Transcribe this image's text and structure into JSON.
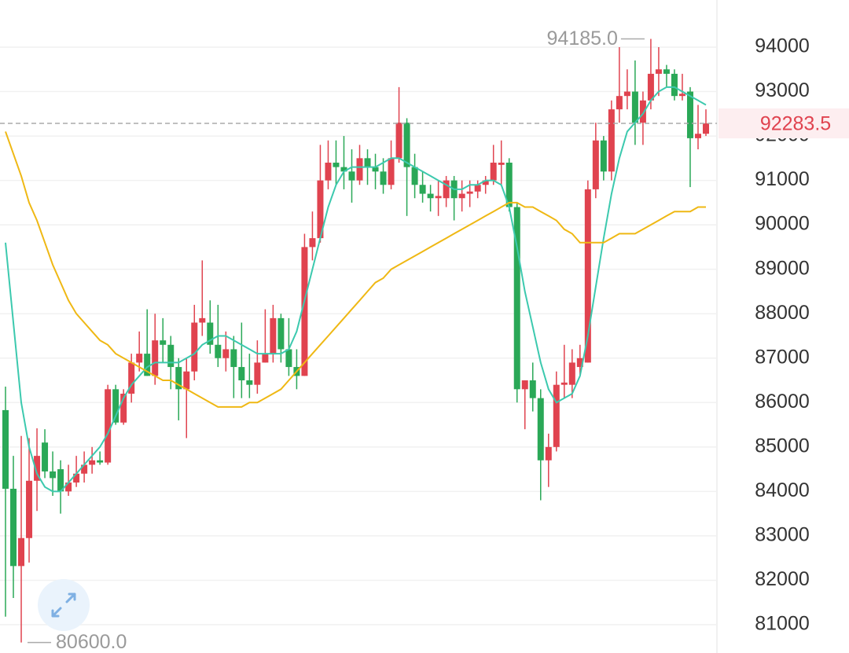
{
  "chart_data": {
    "type": "candlestick",
    "up_color": "#e0434f",
    "down_color": "#2aa857",
    "ylim": [
      80363,
      95061
    ],
    "yticks": [
      81000,
      82000,
      83000,
      84000,
      85000,
      86000,
      87000,
      88000,
      89000,
      90000,
      91000,
      92000,
      93000,
      94000
    ],
    "grid": true,
    "ohlc": [
      [
        85830,
        86360,
        81180,
        84060
      ],
      [
        84060,
        84800,
        81600,
        82320
      ],
      [
        82320,
        85250,
        80600,
        82950
      ],
      [
        82950,
        85200,
        82400,
        84240
      ],
      [
        84240,
        85420,
        83560,
        84800
      ],
      [
        85100,
        85400,
        84300,
        84450
      ],
      [
        84450,
        84900,
        83900,
        84300
      ],
      [
        84500,
        84700,
        83500,
        84000
      ],
      [
        84000,
        84600,
        83900,
        84200
      ],
      [
        84200,
        84800,
        84100,
        84400
      ],
      [
        84400,
        84900,
        84200,
        84600
      ],
      [
        84600,
        85000,
        84400,
        84700
      ],
      [
        84700,
        84900,
        84600,
        84650
      ],
      [
        84650,
        86400,
        84600,
        86300
      ],
      [
        86300,
        86400,
        85500,
        85550
      ],
      [
        85550,
        86300,
        85500,
        86200
      ],
      [
        86200,
        87100,
        86000,
        86900
      ],
      [
        86900,
        87600,
        86700,
        87100
      ],
      [
        87100,
        88100,
        86600,
        86600
      ],
      [
        86600,
        88000,
        86400,
        87400
      ],
      [
        87400,
        87900,
        86900,
        87300
      ],
      [
        87300,
        87500,
        86300,
        86800
      ],
      [
        86800,
        87000,
        85600,
        86300
      ],
      [
        86300,
        87000,
        85200,
        86700
      ],
      [
        86700,
        88200,
        86500,
        87800
      ],
      [
        87800,
        89200,
        87500,
        87900
      ],
      [
        87800,
        88300,
        87100,
        87300
      ],
      [
        87300,
        88200,
        86800,
        87000
      ],
      [
        87000,
        87600,
        86700,
        87200
      ],
      [
        87200,
        87500,
        86100,
        86800
      ],
      [
        86800,
        87800,
        86100,
        86500
      ],
      [
        86500,
        87100,
        86100,
        86400
      ],
      [
        86400,
        87400,
        86200,
        86900
      ],
      [
        86900,
        88100,
        86900,
        87100
      ],
      [
        87100,
        88200,
        86900,
        87900
      ],
      [
        87900,
        88000,
        86900,
        87200
      ],
      [
        87200,
        87900,
        86600,
        86800
      ],
      [
        86800,
        87200,
        86300,
        86600
      ],
      [
        86600,
        89800,
        86600,
        89500
      ],
      [
        89500,
        90300,
        89200,
        89700
      ],
      [
        89700,
        91800,
        89600,
        91000
      ],
      [
        91000,
        91900,
        90800,
        91400
      ],
      [
        91400,
        91900,
        90900,
        91300
      ],
      [
        91300,
        92000,
        90800,
        91200
      ],
      [
        91200,
        91700,
        90500,
        91000
      ],
      [
        91000,
        91800,
        90900,
        91500
      ],
      [
        91500,
        91700,
        90900,
        91300
      ],
      [
        91300,
        91600,
        90800,
        91200
      ],
      [
        91200,
        91500,
        90700,
        90900
      ],
      [
        90900,
        91900,
        90800,
        91500
      ],
      [
        91500,
        93100,
        91400,
        92300
      ],
      [
        92300,
        92400,
        90200,
        91300
      ],
      [
        91300,
        91600,
        90600,
        90900
      ],
      [
        90900,
        91200,
        90500,
        90700
      ],
      [
        90700,
        90900,
        90300,
        90600
      ],
      [
        90600,
        91000,
        90200,
        90650
      ],
      [
        90600,
        91100,
        90400,
        91000
      ],
      [
        91000,
        91100,
        90100,
        90600
      ],
      [
        90600,
        91000,
        90300,
        90700
      ],
      [
        90700,
        91000,
        90400,
        90750
      ],
      [
        90750,
        91000,
        90600,
        90900
      ],
      [
        90900,
        91100,
        90700,
        91000
      ],
      [
        91000,
        91800,
        90900,
        91400
      ],
      [
        91350,
        91900,
        90900,
        91400
      ],
      [
        91400,
        91500,
        90300,
        90400
      ],
      [
        90400,
        90500,
        86000,
        86300
      ],
      [
        86300,
        86500,
        85400,
        86500
      ],
      [
        86500,
        86900,
        85800,
        86100
      ],
      [
        86100,
        86300,
        83800,
        84700
      ],
      [
        84700,
        85300,
        84100,
        85000
      ],
      [
        85000,
        86700,
        84900,
        86400
      ],
      [
        86400,
        87300,
        86100,
        86450
      ],
      [
        86400,
        87200,
        86100,
        86900
      ],
      [
        86800,
        87300,
        86600,
        87000
      ],
      [
        86900,
        91000,
        86900,
        90800
      ],
      [
        90800,
        92300,
        90600,
        91900
      ],
      [
        91900,
        92000,
        91000,
        91200
      ],
      [
        91200,
        92800,
        91000,
        92600
      ],
      [
        92600,
        94000,
        92300,
        92900
      ],
      [
        92900,
        93500,
        92600,
        93000
      ],
      [
        93000,
        93700,
        91800,
        92300
      ],
      [
        92300,
        93000,
        91800,
        92800
      ],
      [
        92800,
        94185,
        92600,
        93400
      ],
      [
        93400,
        94000,
        92900,
        93500
      ],
      [
        93500,
        93600,
        93100,
        93400
      ],
      [
        93400,
        93500,
        92800,
        92900
      ],
      [
        92900,
        93400,
        92800,
        92950
      ],
      [
        93000,
        93100,
        90850,
        91950
      ],
      [
        91950,
        92700,
        91700,
        92050
      ],
      [
        92050,
        92600,
        92000,
        92283.5
      ]
    ],
    "series": [
      {
        "color": "#3cc9ae",
        "values": [
          89600,
          87800,
          86000,
          85000,
          84400,
          84100,
          84000,
          84000,
          84200,
          84400,
          84600,
          84800,
          85000,
          85300,
          85700,
          86100,
          86400,
          86600,
          86800,
          86900,
          86900,
          86900,
          86900,
          87000,
          87100,
          87300,
          87400,
          87500,
          87500,
          87400,
          87300,
          87200,
          87100,
          87100,
          87100,
          87100,
          87200,
          87600,
          88300,
          89000,
          89700,
          90400,
          90900,
          91200,
          91300,
          91300,
          91300,
          91300,
          91400,
          91500,
          91500,
          91400,
          91300,
          91200,
          91100,
          91000,
          90900,
          90800,
          90800,
          90900,
          90900,
          91000,
          91000,
          90900,
          90400,
          89500,
          88500,
          87700,
          86900,
          86300,
          86000,
          86100,
          86200,
          86600,
          87500,
          88600,
          89700,
          90700,
          91500,
          92100,
          92300,
          92500,
          92800,
          93000,
          93100,
          93100,
          93000,
          92900,
          92800,
          92700
        ]
      },
      {
        "color": "#efb814",
        "values": [
          92100,
          91600,
          91100,
          90500,
          90100,
          89600,
          89100,
          88700,
          88300,
          88000,
          87800,
          87600,
          87400,
          87300,
          87100,
          87000,
          86900,
          86800,
          86700,
          86600,
          86500,
          86500,
          86400,
          86300,
          86200,
          86100,
          86000,
          85900,
          85900,
          85900,
          85900,
          86000,
          86000,
          86100,
          86200,
          86300,
          86500,
          86700,
          86900,
          87100,
          87300,
          87500,
          87700,
          87900,
          88100,
          88300,
          88500,
          88700,
          88800,
          89000,
          89100,
          89200,
          89300,
          89400,
          89500,
          89600,
          89700,
          89800,
          89900,
          90000,
          90100,
          90200,
          90300,
          90400,
          90500,
          90500,
          90400,
          90400,
          90300,
          90200,
          90100,
          89900,
          89800,
          89600,
          89600,
          89600,
          89600,
          89700,
          89800,
          89800,
          89800,
          89900,
          90000,
          90100,
          90200,
          90300,
          90300,
          90300,
          90400,
          90400
        ]
      }
    ],
    "max_marker": {
      "value": 94185,
      "label": "94185.0"
    },
    "min_marker": {
      "value": 80600,
      "label": "80600.0"
    },
    "last_price": 92283.5,
    "last_price_color": "#e0434f"
  }
}
